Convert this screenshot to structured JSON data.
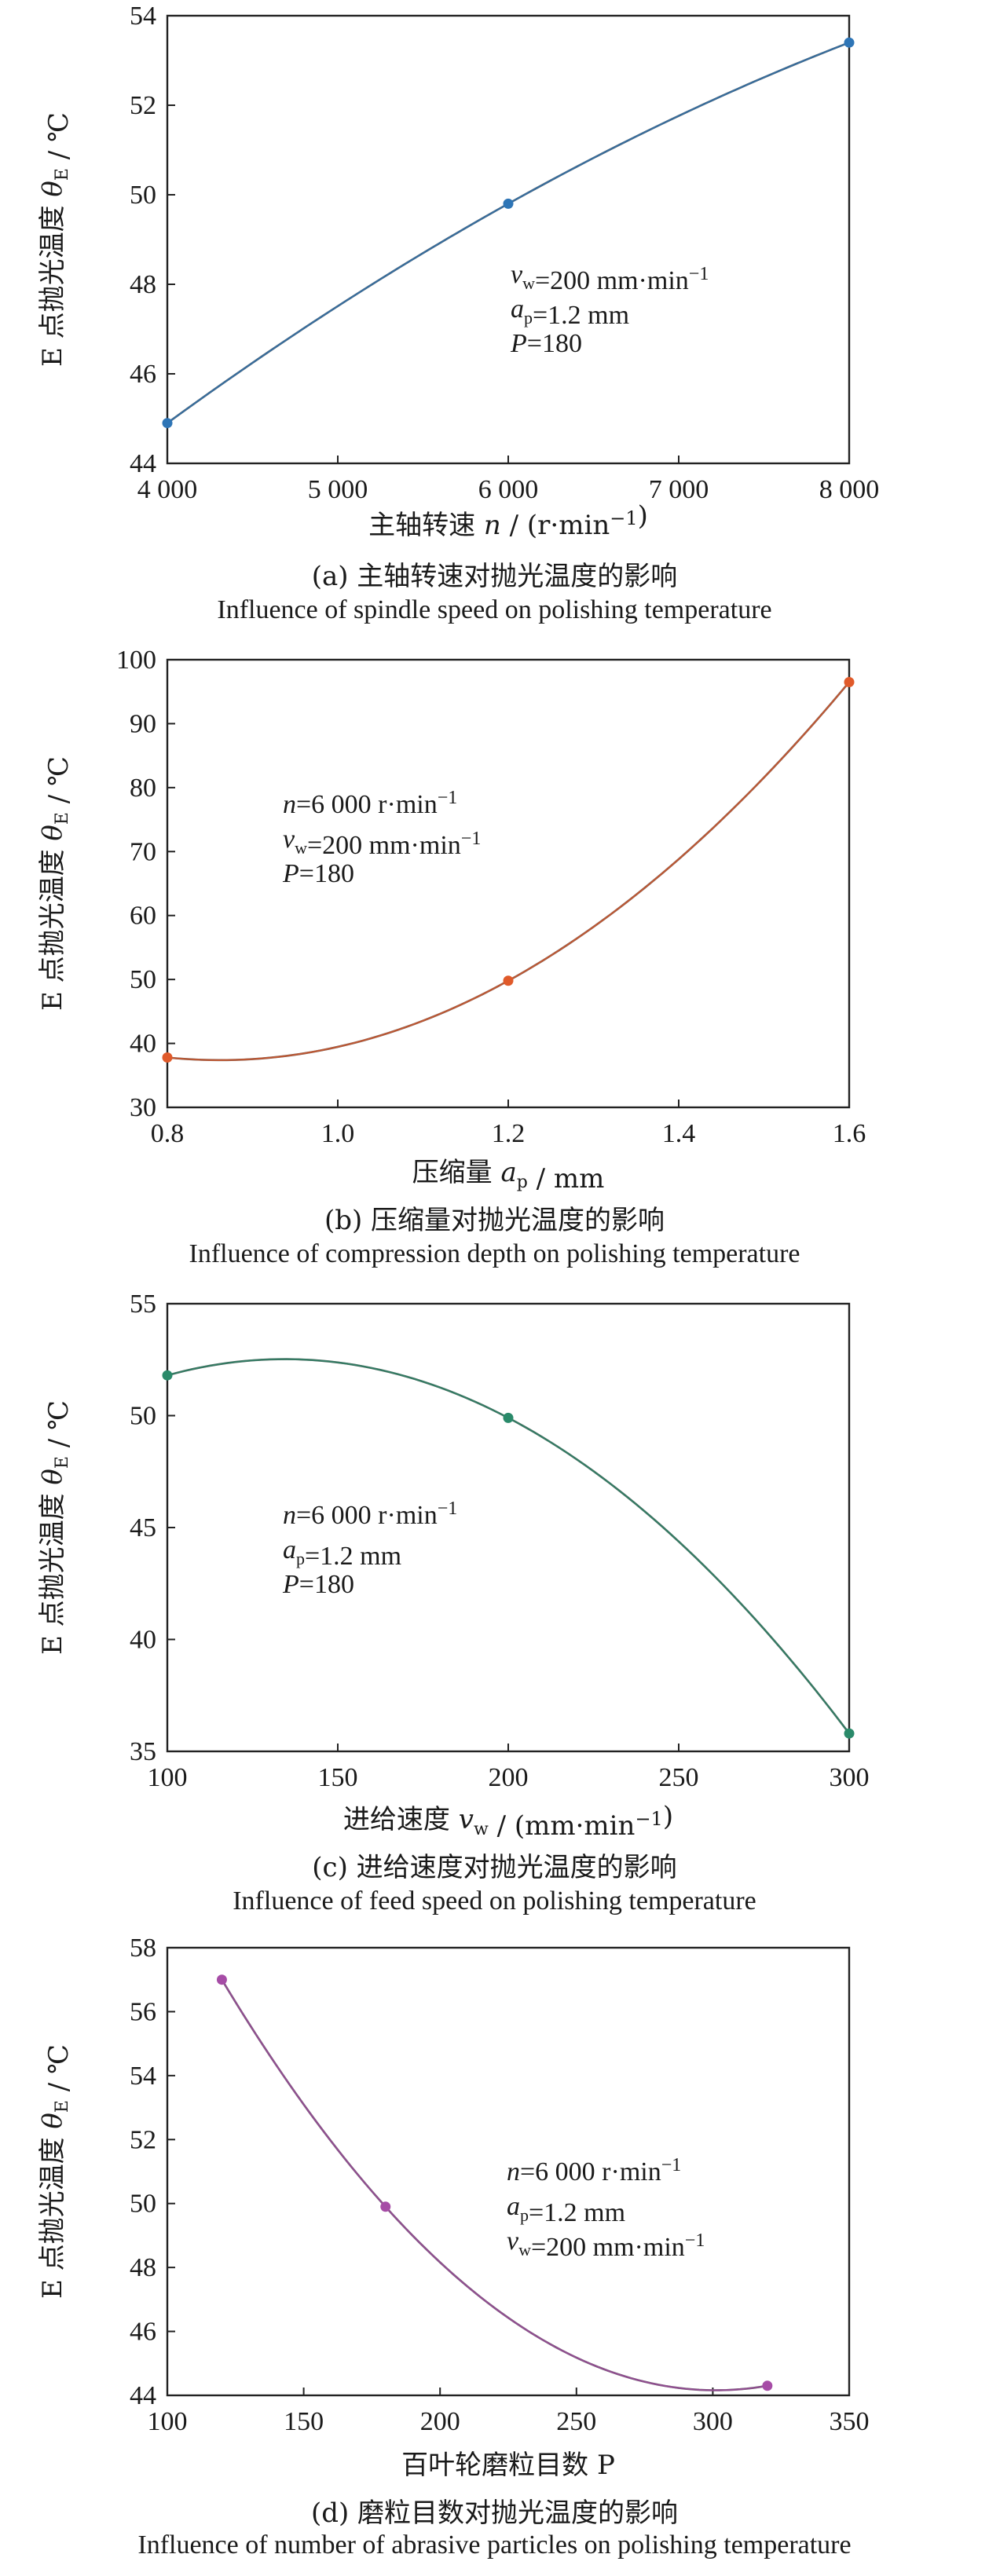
{
  "chart_data": [
    {
      "type": "line",
      "title": "(a) 主轴转速对抛光温度的影响",
      "subtitle": "Influence of spindle speed on polishing temperature",
      "xlabel": "主轴转速 n / (r·min⁻¹)",
      "ylabel": "E 点抛光温度 θE / ℃",
      "xlim": [
        4000,
        8000
      ],
      "ylim": [
        44,
        54
      ],
      "xticks": [
        4000,
        5000,
        6000,
        7000,
        8000
      ],
      "xtick_labels": [
        "4 000",
        "5 000",
        "6 000",
        "7 000",
        "8 000"
      ],
      "yticks": [
        44,
        46,
        48,
        50,
        52,
        54
      ],
      "ytick_labels": [
        "44",
        "46",
        "48",
        "50",
        "52",
        "54"
      ],
      "series": [
        {
          "x": [
            4000,
            6000,
            8000
          ],
          "y": [
            44.9,
            49.8,
            53.4
          ],
          "color": "#2e75b6"
        }
      ],
      "annotations": [
        "vw=200 mm·min⁻¹",
        "ap=1.2 mm",
        "P=180"
      ],
      "grid": false
    },
    {
      "type": "line",
      "title": "(b) 压缩量对抛光温度的影响",
      "subtitle": "Influence of compression depth on polishing temperature",
      "xlabel": "压缩量 ap / mm",
      "ylabel": "E 点抛光温度 θE / ℃",
      "xlim": [
        0.8,
        1.6
      ],
      "ylim": [
        30,
        100
      ],
      "xticks": [
        0.8,
        1.0,
        1.2,
        1.4,
        1.6
      ],
      "xtick_labels": [
        "0.8",
        "1.0",
        "1.2",
        "1.4",
        "1.6"
      ],
      "yticks": [
        30,
        40,
        50,
        60,
        70,
        80,
        90,
        100
      ],
      "ytick_labels": [
        "30",
        "40",
        "50",
        "60",
        "70",
        "80",
        "90",
        "100"
      ],
      "series": [
        {
          "x": [
            0.8,
            1.2,
            1.6
          ],
          "y": [
            37.8,
            49.8,
            96.5
          ],
          "color": "#e05a2a"
        }
      ],
      "annotations": [
        "n=6 000 r·min⁻¹",
        "vw=200 mm·min⁻¹",
        "P=180"
      ],
      "grid": false
    },
    {
      "type": "line",
      "title": "(c) 进给速度对抛光温度的影响",
      "subtitle": "Influence of feed speed on polishing temperature",
      "xlabel": "进给速度 vw / (mm·min⁻¹)",
      "ylabel": "E 点抛光温度 θE / ℃",
      "xlim": [
        100,
        300
      ],
      "ylim": [
        35,
        55
      ],
      "xticks": [
        100,
        150,
        200,
        250,
        300
      ],
      "xtick_labels": [
        "100",
        "150",
        "200",
        "250",
        "300"
      ],
      "yticks": [
        35,
        40,
        45,
        50,
        55
      ],
      "ytick_labels": [
        "35",
        "40",
        "45",
        "50",
        "55"
      ],
      "series": [
        {
          "x": [
            100,
            200,
            300
          ],
          "y": [
            51.8,
            49.9,
            35.8
          ],
          "color": "#2a8a6a"
        }
      ],
      "annotations": [
        "n=6 000 r·min⁻¹",
        "ap=1.2 mm",
        "P=180"
      ],
      "grid": false
    },
    {
      "type": "line",
      "title": "(d) 磨粒目数对抛光温度的影响",
      "subtitle": "Influence of number of abrasive particles on polishing temperature",
      "xlabel": "百叶轮磨粒目数 P",
      "ylabel": "E 点抛光温度 θE / ℃",
      "xlim": [
        100,
        350
      ],
      "ylim": [
        44,
        58
      ],
      "xticks": [
        100,
        150,
        200,
        250,
        300,
        350
      ],
      "xtick_labels": [
        "100",
        "150",
        "200",
        "250",
        "300",
        "350"
      ],
      "yticks": [
        44,
        46,
        48,
        50,
        52,
        54,
        56,
        58
      ],
      "ytick_labels": [
        "44",
        "46",
        "48",
        "50",
        "52",
        "54",
        "56",
        "58"
      ],
      "series": [
        {
          "x": [
            120,
            180,
            320
          ],
          "y": [
            57.0,
            49.9,
            44.3
          ],
          "color": "#a64ca6"
        }
      ],
      "annotations": [
        "n=6 000 r·min⁻¹",
        "ap=1.2 mm",
        "vw=200 mm·min⁻¹"
      ],
      "grid": false
    }
  ]
}
